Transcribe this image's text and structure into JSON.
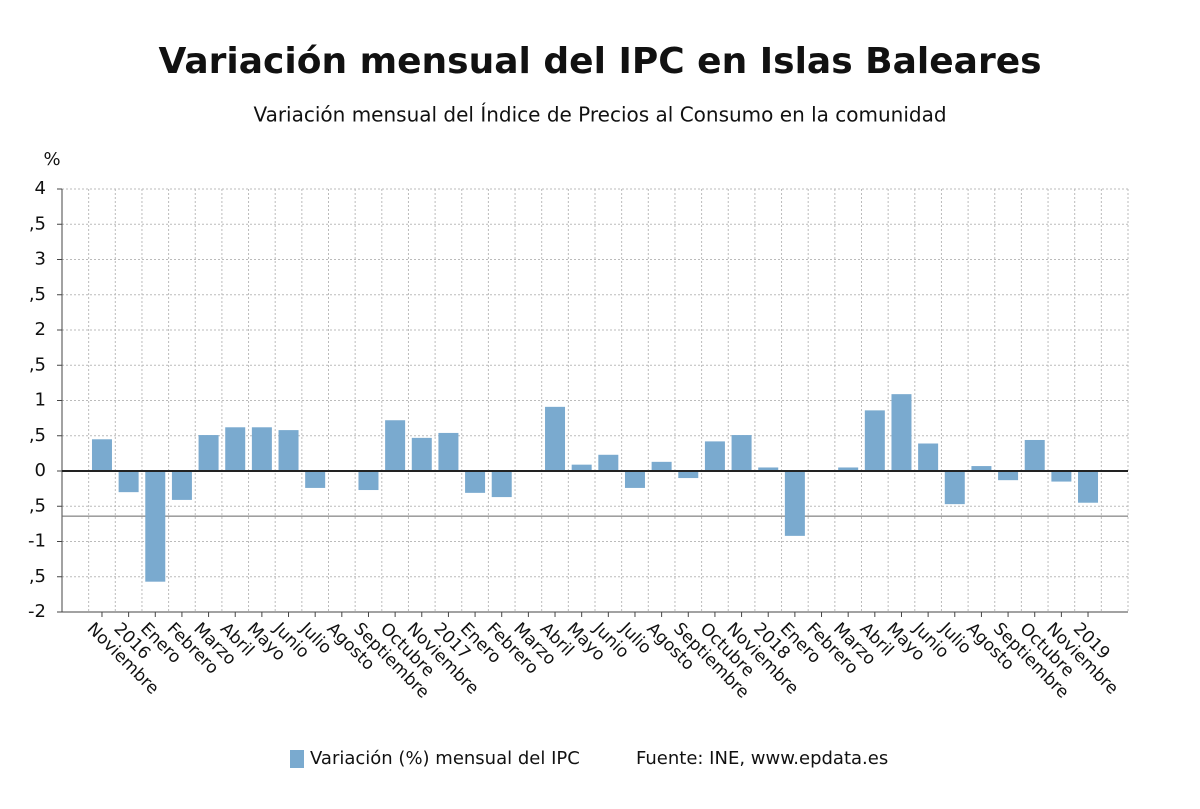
{
  "chart_data": {
    "type": "bar",
    "title": "Variación mensual del IPC en Islas Baleares",
    "subtitle": "Variación mensual del Índice de Precios al Consumo en la comunidad",
    "y_label": "%",
    "source": "Fuente: INE, www.epdata.es",
    "categories": [
      "Noviembre",
      "2016",
      "Enero",
      "Febrero",
      "Marzo",
      "Abril",
      "Mayo",
      "Junio",
      "Julio",
      "Agosto",
      "Septiembre",
      "Octubre",
      "Noviembre",
      "2017",
      "Enero",
      "Febrero",
      "Marzo",
      "Abril",
      "Mayo",
      "Junio",
      "Julio",
      "Agosto",
      "Septiembre",
      "Octubre",
      "Noviembre",
      "2018",
      "Enero",
      "Febrero",
      "Marzo",
      "Abril",
      "Mayo",
      "Junio",
      "Julio",
      "Agosto",
      "Septiembre",
      "Octubre",
      "Noviembre",
      "2019"
    ],
    "series": [
      {
        "name": "Variación (%) mensual del IPC",
        "color": "#7aaacf",
        "values": [
          0.45,
          -0.3,
          -1.57,
          -0.41,
          0.51,
          0.62,
          0.62,
          0.58,
          -0.24,
          0.01,
          -0.27,
          0.72,
          0.47,
          0.54,
          -0.31,
          -0.37,
          0.01,
          0.91,
          0.09,
          0.23,
          -0.24,
          0.13,
          -0.1,
          0.42,
          0.51,
          0.05,
          -0.92,
          0.01,
          0.05,
          0.86,
          1.09,
          0.39,
          -0.47,
          0.07,
          -0.13,
          0.44,
          -0.15,
          -0.45
        ]
      }
    ],
    "reference_line": -0.64,
    "ylim": [
      -2,
      4
    ],
    "yticks": [
      -2,
      {
        "value": -1.5,
        "label": ",5"
      },
      -1,
      {
        "value": -0.5,
        "label": ",5"
      },
      0,
      {
        "value": 0.5,
        "label": ",5"
      },
      1,
      {
        "value": 1.5,
        "label": ",5"
      },
      2,
      {
        "value": 2.5,
        "label": ",5"
      },
      3,
      {
        "value": 3.5,
        "label": ",5"
      },
      4
    ],
    "grid": true
  }
}
